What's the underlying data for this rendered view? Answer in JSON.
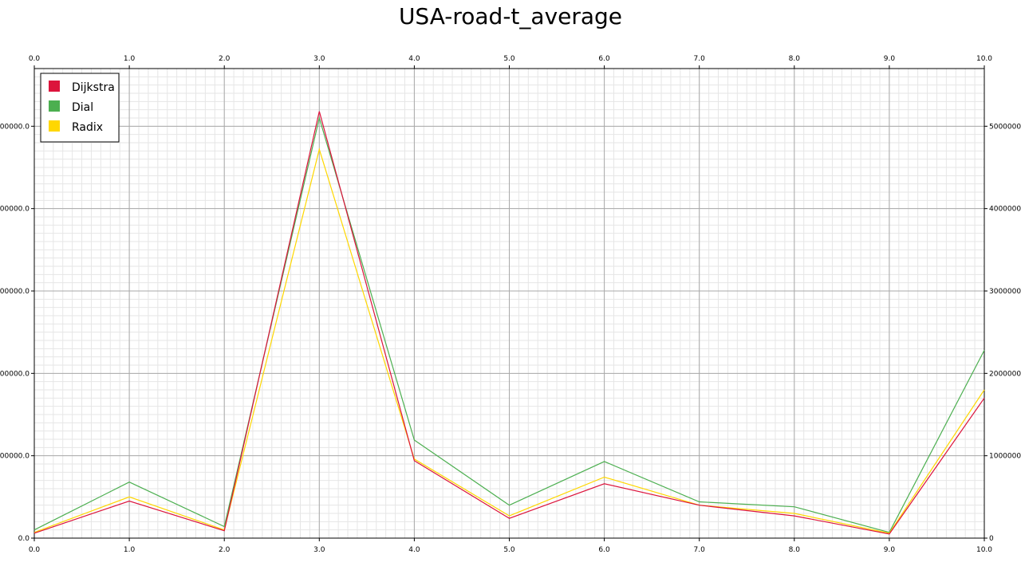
{
  "chart_data": {
    "type": "line",
    "title": "USA-road-t_average",
    "xlabel": "",
    "ylabel": "",
    "xlim": [
      0,
      10
    ],
    "ylim": [
      0,
      5700000
    ],
    "x_ticks": [
      0,
      1,
      2,
      3,
      4,
      5,
      6,
      7,
      8,
      9,
      10
    ],
    "x_tick_labels": [
      "0.0",
      "1.0",
      "2.0",
      "3.0",
      "4.0",
      "5.0",
      "6.0",
      "7.0",
      "8.0",
      "9.0",
      "10.0"
    ],
    "y_ticks": [
      0,
      1000000,
      2000000,
      3000000,
      4000000,
      5000000
    ],
    "y_tick_labels_left": [
      "0.0",
      "000000.0",
      "000000.0",
      "000000.0",
      "000000.0",
      "000000.0"
    ],
    "y_tick_labels_right": [
      "0",
      "1000000",
      "2000000",
      "3000000",
      "4000000",
      "5000000"
    ],
    "grid": true,
    "legend_position": "top-left",
    "x": [
      0,
      1,
      2,
      3,
      4,
      5,
      6,
      7,
      8,
      9,
      10
    ],
    "series": [
      {
        "name": "Dijkstra",
        "color": "#dc143c",
        "values": [
          60000,
          450000,
          90000,
          5180000,
          940000,
          240000,
          660000,
          400000,
          270000,
          50000,
          1700000
        ]
      },
      {
        "name": "Dial",
        "color": "#4caf50",
        "values": [
          100000,
          680000,
          140000,
          5100000,
          1190000,
          400000,
          930000,
          440000,
          380000,
          70000,
          2280000
        ]
      },
      {
        "name": "Radix",
        "color": "#ffd700",
        "values": [
          70000,
          500000,
          100000,
          4720000,
          960000,
          270000,
          740000,
          400000,
          300000,
          60000,
          1800000
        ]
      }
    ]
  }
}
